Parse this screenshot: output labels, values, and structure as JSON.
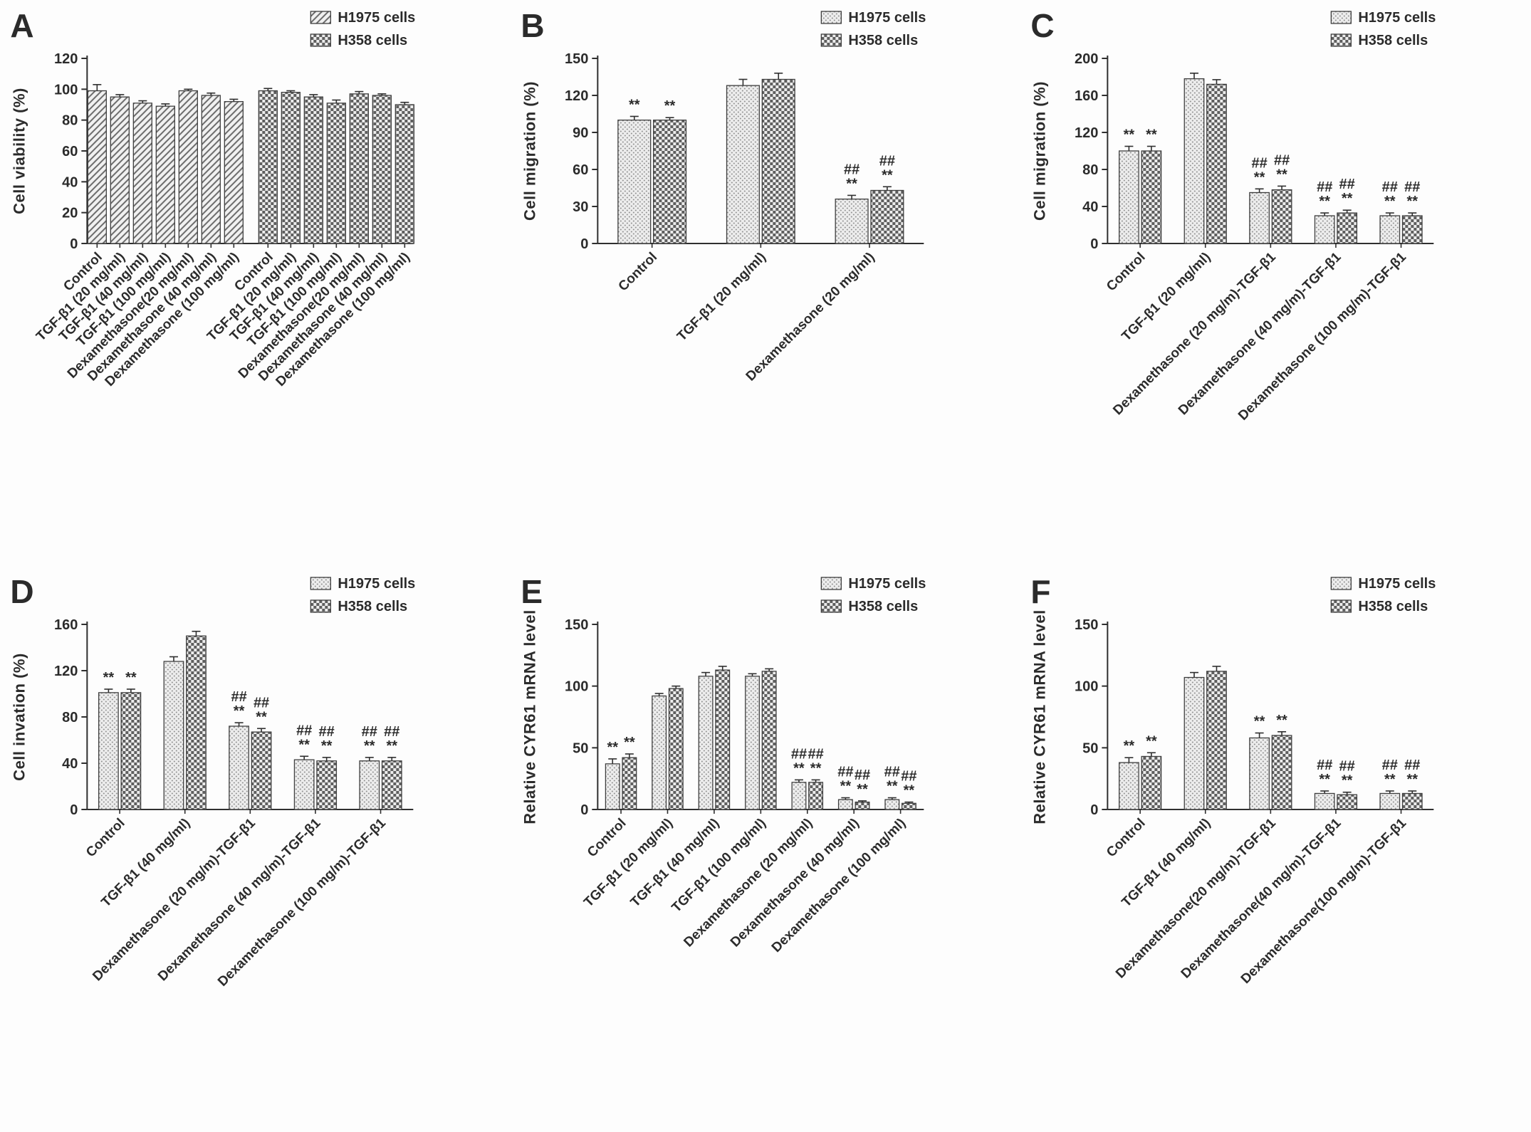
{
  "legend": {
    "series": [
      "H1975 cells",
      "H358 cells"
    ]
  },
  "chart_data": [
    {
      "letter": "A",
      "type": "bar",
      "ylabel": "Cell viability (%)",
      "ylim": [
        0,
        120
      ],
      "yticks": [
        0,
        20,
        40,
        60,
        80,
        100,
        120
      ],
      "layout": "blocks",
      "legend_position": "top-right",
      "grid": false,
      "categories": [
        "Control",
        "TGF-β1 (20 mg/ml)",
        "TGF-β1 (40 mg/ml)",
        "TGF-β1 (100 mg/ml)",
        "Dexamethasone(20 mg/ml)",
        "Dexamethasone (40 mg/ml)",
        "Dexamethasone (100 mg/ml)"
      ],
      "series": [
        {
          "name": "H1975 cells",
          "pattern": "diag",
          "values": [
            99,
            95,
            91,
            89,
            99,
            96,
            92
          ],
          "errors": [
            4,
            1.5,
            1.5,
            1.5,
            1,
            1.5,
            1.5
          ],
          "annotations": [
            "",
            "",
            "",
            "",
            "",
            "",
            ""
          ]
        },
        {
          "name": "H358 cells",
          "pattern": "checker",
          "values": [
            99,
            98,
            95,
            91,
            97,
            96,
            90
          ],
          "errors": [
            1.5,
            1,
            1.5,
            2,
            1.5,
            1,
            1.5
          ],
          "annotations": [
            "",
            "",
            "",
            "",
            "",
            "",
            ""
          ]
        }
      ]
    },
    {
      "letter": "B",
      "type": "bar",
      "ylabel": "Cell migration (%)",
      "ylim": [
        0,
        150
      ],
      "yticks": [
        0,
        30,
        60,
        90,
        120,
        150
      ],
      "layout": "grouped",
      "legend_position": "top-right",
      "grid": false,
      "categories": [
        "Control",
        "TGF-β1 (20 mg/ml)",
        "Dexamethasone (20 mg/ml)"
      ],
      "series": [
        {
          "name": "H1975 cells",
          "pattern": "dots",
          "values": [
            100,
            128,
            36
          ],
          "errors": [
            3,
            5,
            3
          ],
          "annotations": [
            "**",
            "",
            "##\n**"
          ]
        },
        {
          "name": "H358 cells",
          "pattern": "checker",
          "values": [
            100,
            133,
            43
          ],
          "errors": [
            2,
            5,
            3
          ],
          "annotations": [
            "**",
            "",
            "##\n**"
          ]
        }
      ]
    },
    {
      "letter": "C",
      "type": "bar",
      "ylabel": "Cell migration (%)",
      "ylim": [
        0,
        200
      ],
      "yticks": [
        0,
        40,
        80,
        120,
        160,
        200
      ],
      "layout": "grouped",
      "legend_position": "top-right",
      "grid": false,
      "categories": [
        "Control",
        "TGF-β1 (20 mg/ml)",
        "Dexamethasone (20 mg/m)-TGF-β1",
        "Dexamethasone (40 mg/m)-TGF-β1",
        "Dexamethasone (100 mg/m)-TGF-β1"
      ],
      "series": [
        {
          "name": "H1975 cells",
          "pattern": "dots",
          "values": [
            100,
            178,
            55,
            30,
            30
          ],
          "errors": [
            5,
            6,
            4,
            3,
            3
          ],
          "annotations": [
            "**",
            "",
            "##\n**",
            "##\n**",
            "##\n**"
          ]
        },
        {
          "name": "H358 cells",
          "pattern": "checker",
          "values": [
            100,
            172,
            58,
            33,
            30
          ],
          "errors": [
            5,
            5,
            4,
            3,
            3
          ],
          "annotations": [
            "**",
            "",
            "##\n**",
            "##\n**",
            "##\n**"
          ]
        }
      ]
    },
    {
      "letter": "D",
      "type": "bar",
      "ylabel": "Cell invation (%)",
      "ylim": [
        0,
        160
      ],
      "yticks": [
        0,
        40,
        80,
        120,
        160
      ],
      "layout": "grouped",
      "legend_position": "top-right",
      "grid": false,
      "categories": [
        "Control",
        "TGF-β1 (40 mg/ml)",
        "Dexamethasone (20 mg/m)-TGF-β1",
        "Dexamethasone (40 mg/m)-TGF-β1",
        "Dexamethasone (100 mg/m)-TGF-β1"
      ],
      "series": [
        {
          "name": "H1975 cells",
          "pattern": "dots",
          "values": [
            101,
            128,
            72,
            43,
            42
          ],
          "errors": [
            3,
            4,
            3,
            3,
            3
          ],
          "annotations": [
            "**",
            "",
            "##\n**",
            "##\n**",
            "##\n**"
          ]
        },
        {
          "name": "H358 cells",
          "pattern": "checker",
          "values": [
            101,
            150,
            67,
            42,
            42
          ],
          "errors": [
            3,
            4,
            3,
            3,
            3
          ],
          "annotations": [
            "**",
            "",
            "##\n**",
            "##\n**",
            "##\n**"
          ]
        }
      ]
    },
    {
      "letter": "E",
      "type": "bar",
      "ylabel": "Relative CYR61 mRNA level",
      "ylim": [
        0,
        150
      ],
      "yticks": [
        0,
        50,
        100,
        150
      ],
      "layout": "grouped",
      "legend_position": "top-right",
      "grid": false,
      "categories": [
        "Control",
        "TGF-β1 (20 mg/ml)",
        "TGF-β1 (40 mg/ml)",
        "TGF-β1 (100 mg/ml)",
        "Dexamethasone (20 mg/ml)",
        "Dexamethasone (40 mg/ml)",
        "Dexamethasone (100 mg/ml)"
      ],
      "series": [
        {
          "name": "H1975 cells",
          "pattern": "dots",
          "values": [
            37,
            92,
            108,
            108,
            22,
            8,
            8
          ],
          "errors": [
            4,
            2,
            3,
            2,
            2,
            1.5,
            1.5
          ],
          "annotations": [
            "**",
            "",
            "",
            "",
            "##\n**",
            "##\n**",
            "##\n**"
          ]
        },
        {
          "name": "H358 cells",
          "pattern": "checker",
          "values": [
            42,
            98,
            113,
            112,
            22,
            6,
            5
          ],
          "errors": [
            3,
            2,
            3,
            2,
            2,
            1,
            1
          ],
          "annotations": [
            "**",
            "",
            "",
            "",
            "##\n**",
            "##\n**",
            "##\n**"
          ]
        }
      ]
    },
    {
      "letter": "F",
      "type": "bar",
      "ylabel": "Relative CYR61 mRNA level",
      "ylim": [
        0,
        150
      ],
      "yticks": [
        0,
        50,
        100,
        150
      ],
      "layout": "grouped",
      "legend_position": "top-right",
      "grid": false,
      "categories": [
        "Control",
        "TGF-β1 (40 mg/ml)",
        "Dexamethasone(20 mg/m)-TGF-β1",
        "Dexamethasone(40 mg/m)-TGF-β1",
        "Dexamethasone(100 mg/m)-TGF-β1"
      ],
      "series": [
        {
          "name": "H1975 cells",
          "pattern": "dots",
          "values": [
            38,
            107,
            58,
            13,
            13
          ],
          "errors": [
            4,
            4,
            4,
            2,
            2
          ],
          "annotations": [
            "**",
            "",
            "**",
            "##\n**",
            "##\n**"
          ]
        },
        {
          "name": "H358 cells",
          "pattern": "checker",
          "values": [
            43,
            112,
            60,
            12,
            13
          ],
          "errors": [
            3,
            4,
            3,
            2,
            2
          ],
          "annotations": [
            "**",
            "",
            "**",
            "##\n**",
            "##\n**"
          ]
        }
      ]
    }
  ]
}
